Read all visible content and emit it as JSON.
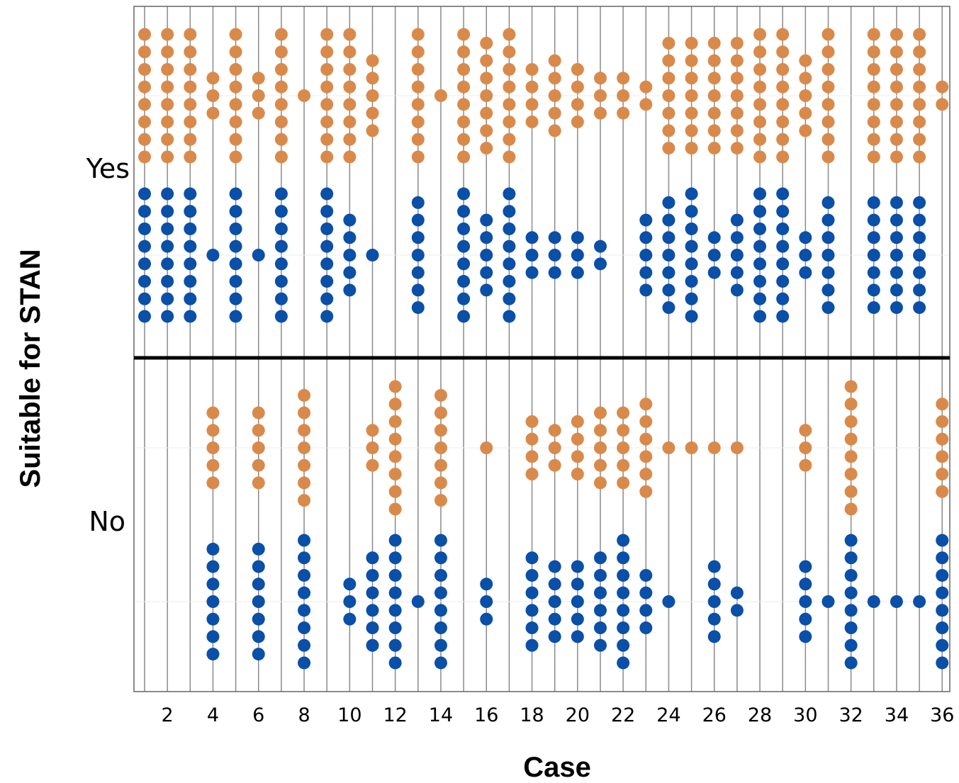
{
  "chart_data": {
    "type": "scatter",
    "subtype": "grouped dot plot",
    "xlabel": "Case",
    "ylabel": "Suitable for STAN",
    "x_range": [
      1,
      36
    ],
    "x_ticks": [
      2,
      4,
      6,
      8,
      10,
      12,
      14,
      16,
      18,
      20,
      22,
      24,
      26,
      28,
      30,
      32,
      34,
      36
    ],
    "panels": [
      "Yes",
      "No"
    ],
    "series_colors": {
      "upper_row": "#D98A4A",
      "lower_row": "#0A4FA8"
    },
    "grid": "vertical lines at each case",
    "counts": {
      "Yes": {
        "orange": [
          8,
          8,
          8,
          3,
          8,
          3,
          8,
          1,
          8,
          8,
          5,
          0,
          8,
          1,
          8,
          7,
          8,
          4,
          5,
          4,
          3,
          3,
          2,
          7,
          7,
          7,
          7,
          8,
          8,
          5,
          8,
          0,
          8,
          8,
          8,
          2
        ],
        "blue": [
          8,
          8,
          8,
          1,
          8,
          1,
          8,
          0,
          8,
          5,
          1,
          0,
          7,
          0,
          8,
          5,
          8,
          3,
          3,
          3,
          2,
          0,
          5,
          7,
          8,
          3,
          5,
          8,
          8,
          3,
          7,
          0,
          7,
          7,
          7,
          0
        ]
      },
      "No": {
        "orange": [
          0,
          0,
          0,
          5,
          0,
          5,
          0,
          7,
          0,
          0,
          3,
          8,
          0,
          7,
          0,
          1,
          0,
          4,
          3,
          4,
          5,
          5,
          6,
          1,
          1,
          1,
          1,
          0,
          0,
          3,
          0,
          8,
          0,
          0,
          0,
          6
        ],
        "blue": [
          0,
          0,
          0,
          7,
          0,
          7,
          0,
          8,
          0,
          3,
          6,
          8,
          1,
          8,
          0,
          3,
          0,
          6,
          5,
          5,
          6,
          8,
          4,
          1,
          0,
          5,
          2,
          0,
          0,
          5,
          1,
          8,
          1,
          1,
          1,
          8
        ]
      }
    }
  }
}
